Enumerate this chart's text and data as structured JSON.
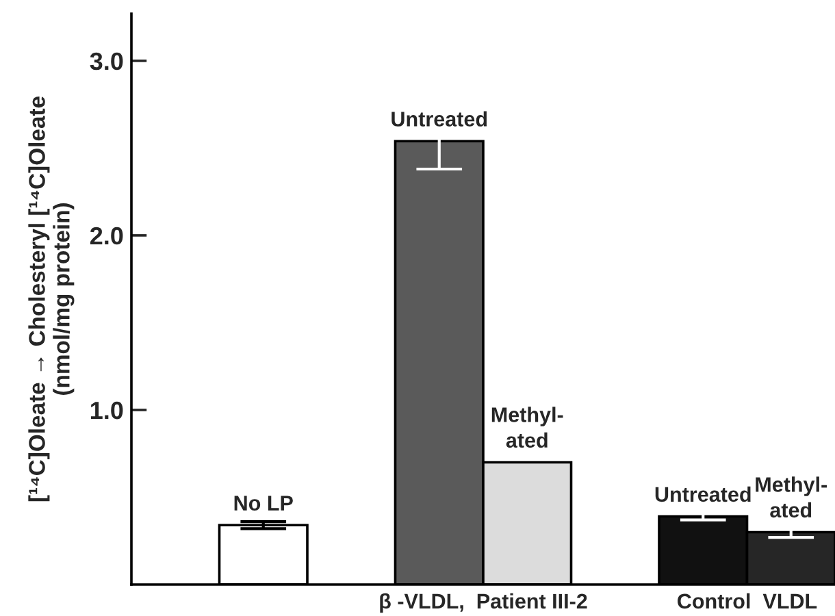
{
  "chart_data": {
    "type": "bar",
    "categories": [
      "No LP",
      null,
      "Untreated",
      "Methyl-\nated",
      null,
      "Untreated",
      "Methyl-\nated"
    ],
    "values": [
      0.34,
      null,
      2.54,
      0.7,
      null,
      0.39,
      0.3
    ],
    "errors": [
      0.02,
      null,
      0.16,
      null,
      null,
      0.02,
      0.03
    ],
    "colors": [
      "#ffffff",
      "#ffffff",
      "#5a5a5a",
      "#dcdcdc",
      "#ffffff",
      "#111111",
      "#262626"
    ],
    "ylabel": "[¹⁴C]Oleate → Cholesteryl [¹⁴C]Oleate\n(nmol/mg protein)",
    "ylim": [
      0,
      3.27
    ],
    "yticks": [
      {
        "value": 1.0,
        "label": "1.0"
      },
      {
        "value": 2.0,
        "label": "2.0"
      },
      {
        "value": 3.0,
        "label": "3.0"
      }
    ],
    "annotations": [
      "β -VLDL,  Patient III-2",
      "Control  VLDL"
    ],
    "grid": false,
    "legend": false
  }
}
